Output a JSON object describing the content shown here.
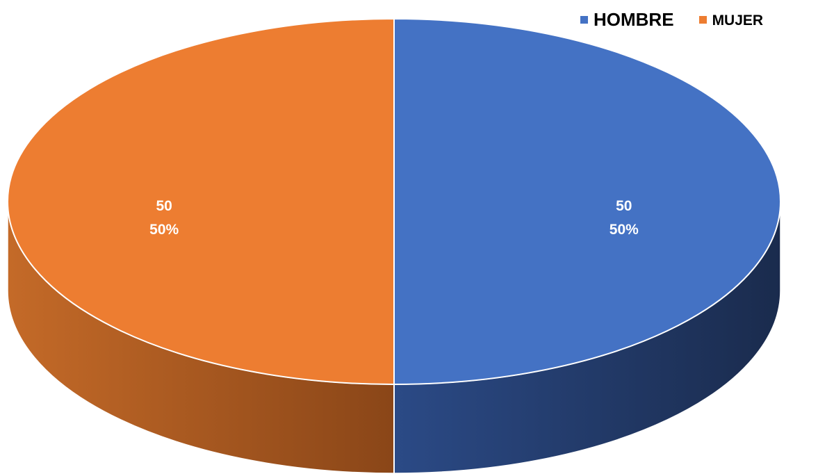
{
  "chart_data": {
    "type": "pie",
    "style": "3d",
    "title": "",
    "legend_position": "top-right",
    "categories": [
      "HOMBRE",
      "MUJER"
    ],
    "values": [
      50,
      50
    ],
    "percent_labels": [
      "50%",
      "50%"
    ],
    "value_labels": [
      "50",
      "50"
    ],
    "colors": [
      "#4472C4",
      "#ED7D31"
    ],
    "side_colors": [
      "#1F3864",
      "#A0521C"
    ]
  }
}
